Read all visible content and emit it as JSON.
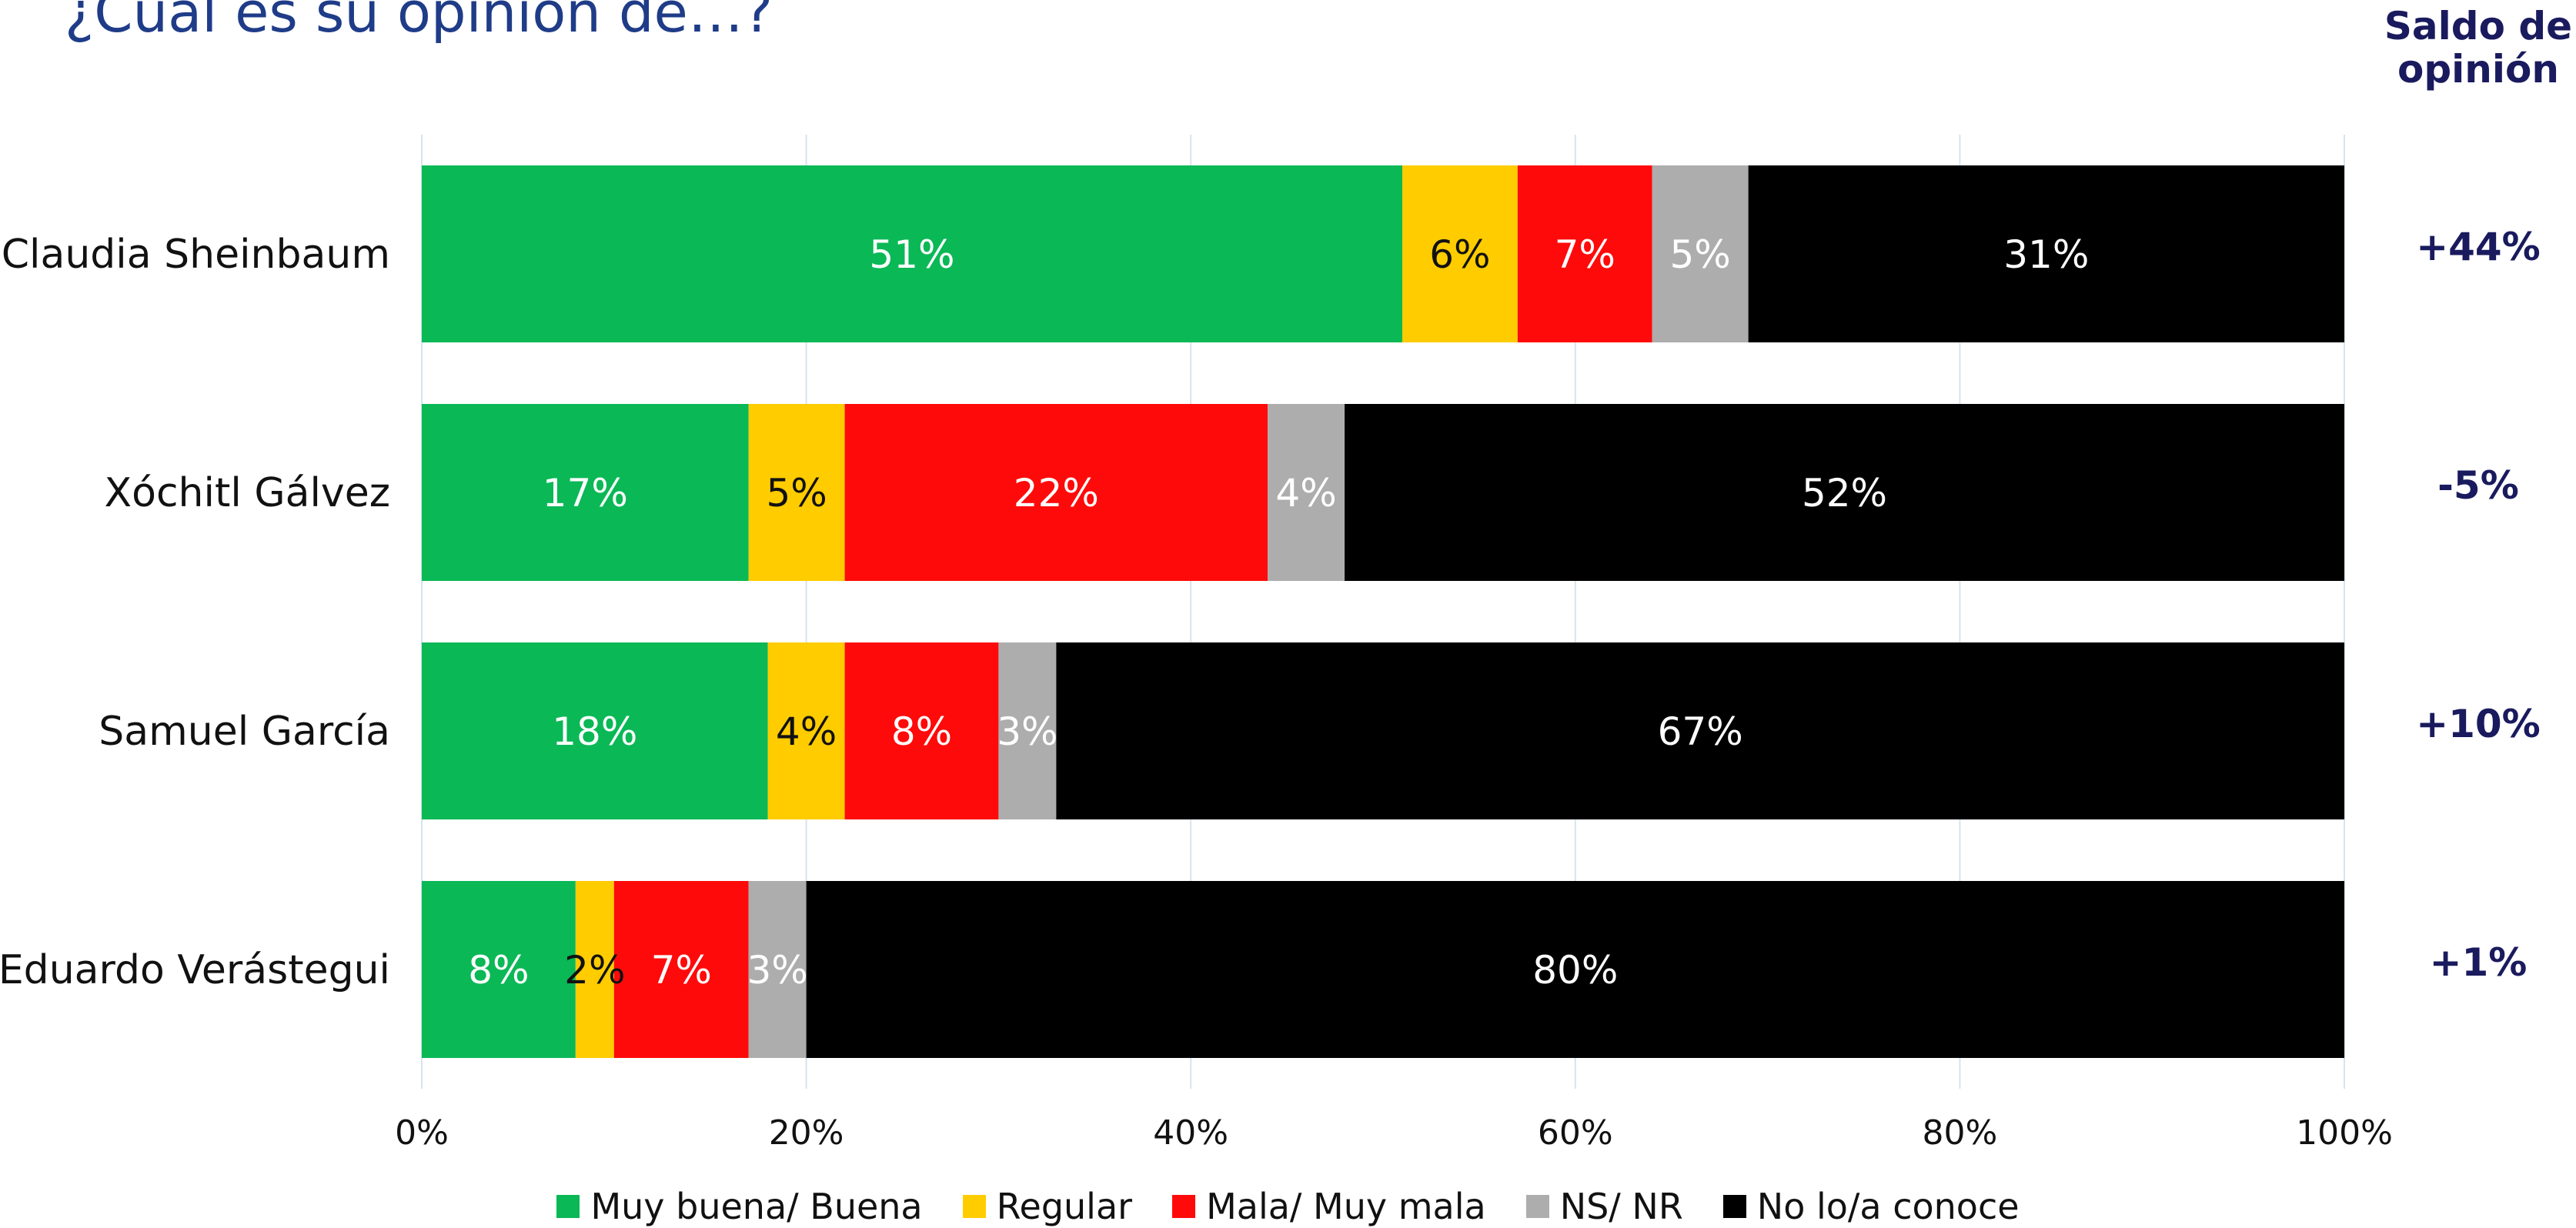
{
  "title": "¿Cual es su opinion de…?",
  "saldo_header": [
    "Saldo de",
    "opinión"
  ],
  "chart_data": {
    "type": "bar",
    "orientation": "horizontal",
    "stacked": true,
    "categories": [
      "Claudia Sheinbaum",
      "Xóchitl Gálvez",
      "Samuel García",
      "Eduardo Verástegui"
    ],
    "series": [
      {
        "name": "Muy buena/ Buena",
        "color": "#0ab856",
        "label_color": "#ffffff",
        "values": [
          51,
          17,
          18,
          8
        ]
      },
      {
        "name": "Regular",
        "color": "#ffcc00",
        "label_color": "#111111",
        "values": [
          6,
          5,
          4,
          2
        ]
      },
      {
        "name": "Mala/ Muy mala",
        "color": "#ff0a0a",
        "label_color": "#ffffff",
        "values": [
          7,
          22,
          8,
          7
        ]
      },
      {
        "name": "NS/ NR",
        "color": "#adadad",
        "label_color": "#ffffff",
        "values": [
          5,
          4,
          3,
          3
        ]
      },
      {
        "name": "No lo/a conoce",
        "color": "#000000",
        "label_color": "#ffffff",
        "values": [
          31,
          52,
          67,
          80
        ]
      }
    ],
    "value_suffix": "%",
    "xlim": [
      0,
      100
    ],
    "xticks": [
      "0%",
      "20%",
      "40%",
      "60%",
      "80%",
      "100%"
    ],
    "xtick_values": [
      0,
      20,
      40,
      60,
      80,
      100
    ],
    "grid": true,
    "gridline_color": "#d6e4ee",
    "legend_position": "bottom",
    "saldo_de_opinion": [
      "+44%",
      "-5%",
      "+10%",
      "+1%"
    ]
  }
}
